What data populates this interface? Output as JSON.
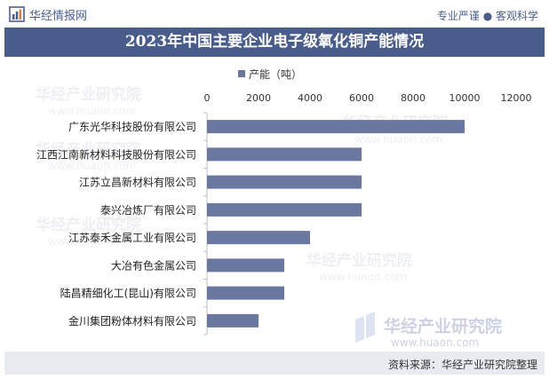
{
  "header": {
    "brand": "华经情报网",
    "slogan": "专业严谨 ● 客观科学"
  },
  "title": "2023年中国主要企业电子级氧化铜产能情况",
  "watermark": {
    "cn": "华经产业研究院",
    "url": "www.huaon.com"
  },
  "footer": {
    "source": "资料来源：华经产业研究院整理"
  },
  "colors": {
    "bar": "#6a789f",
    "title_bg": "#495d8c",
    "footer_bg": "#e8ebf0"
  },
  "chart_data": {
    "type": "bar",
    "orientation": "horizontal",
    "title": "2023年中国主要企业电子级氧化铜产能情况",
    "categories": [
      "广东光华科技股份有限公司",
      "江西江南新材料科技股份有限公司",
      "江苏立昌新材料有限公司",
      "泰兴冶炼厂有限公司",
      "江苏泰禾金属工业有限公司",
      "大冶有色金属公司",
      "陆昌精细化工(昆山)有限公司",
      "金川集团粉体材料有限公司"
    ],
    "series": [
      {
        "name": "产能（吨）",
        "values": [
          10000,
          6000,
          6000,
          6000,
          4000,
          3000,
          3000,
          2000
        ]
      }
    ],
    "xlim": [
      0,
      12000
    ],
    "xticks": [
      0,
      2000,
      4000,
      6000,
      8000,
      10000,
      12000
    ],
    "axis_position": "top",
    "legend_position": "top-center",
    "grid": false
  }
}
